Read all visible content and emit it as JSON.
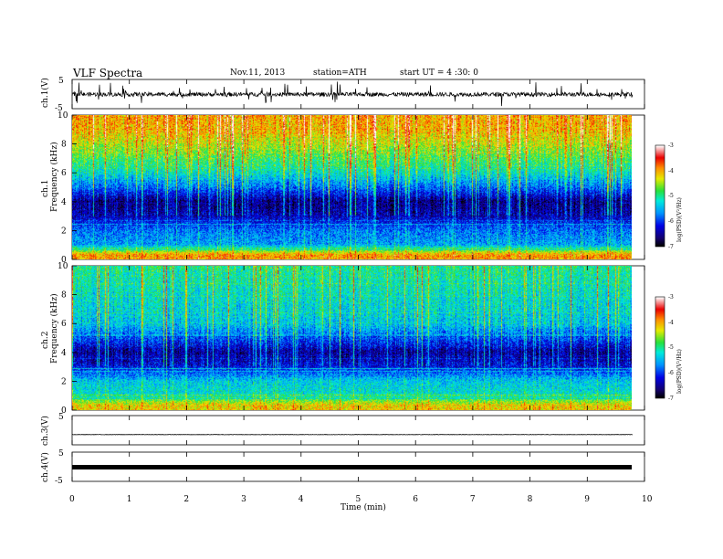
{
  "header": {
    "title": "VLF Spectra",
    "date": "Nov.11, 2013",
    "station": "station=ATH",
    "start_ut": "start UT =  4 :30: 0"
  },
  "chart_data": [
    {
      "type": "line",
      "panel": "ch1-waveform",
      "ylabel": "ch.1(V)",
      "ylim": [
        -5,
        5
      ],
      "yticks": [
        "5",
        "-5"
      ],
      "baseline_mean": -0.1,
      "spike_amplitude": 4,
      "color": "#000000"
    },
    {
      "type": "heatmap",
      "panel": "ch1-spectrogram",
      "ylabel_top": "ch.1",
      "ylabel": "Frequency  (kHz)",
      "ylim": [
        0,
        10
      ],
      "yticks": [
        "0",
        "2",
        "4",
        "6",
        "8",
        "10"
      ],
      "colorbar": {
        "label": "log(PSD)(V²/Hz)",
        "range": [
          -7,
          -3
        ],
        "ticks": [
          "-3",
          "-4",
          "-5",
          "-6",
          "-7"
        ]
      },
      "band_profile": [
        {
          "freq_khz": 0.3,
          "level": -4.0
        },
        {
          "freq_khz": 1.0,
          "level": -5.6
        },
        {
          "freq_khz": 2.0,
          "level": -5.8
        },
        {
          "freq_khz": 3.0,
          "level": -6.4
        },
        {
          "freq_khz": 4.0,
          "level": -6.6
        },
        {
          "freq_khz": 5.0,
          "level": -5.8
        },
        {
          "freq_khz": 6.0,
          "level": -5.2
        },
        {
          "freq_khz": 7.0,
          "level": -4.8
        },
        {
          "freq_khz": 8.0,
          "level": -4.4
        },
        {
          "freq_khz": 9.0,
          "level": -4.1
        },
        {
          "freq_khz": 10.0,
          "level": -4.0
        }
      ]
    },
    {
      "type": "heatmap",
      "panel": "ch2-spectrogram",
      "ylabel_top": "ch.2",
      "ylabel": "Frequency  (kHz)",
      "ylim": [
        0,
        10
      ],
      "yticks": [
        "0",
        "2",
        "4",
        "6",
        "8",
        "10"
      ],
      "colorbar": {
        "label": "log(PSD)(V²/Hz)",
        "range": [
          -7,
          -3
        ],
        "ticks": [
          "-3",
          "-4",
          "-5",
          "-6",
          "-7"
        ]
      },
      "band_profile": [
        {
          "freq_khz": 0.3,
          "level": -4.2
        },
        {
          "freq_khz": 1.0,
          "level": -5.2
        },
        {
          "freq_khz": 2.0,
          "level": -5.4
        },
        {
          "freq_khz": 3.0,
          "level": -6.2
        },
        {
          "freq_khz": 4.0,
          "level": -6.5
        },
        {
          "freq_khz": 5.0,
          "level": -5.9
        },
        {
          "freq_khz": 6.0,
          "level": -5.4
        },
        {
          "freq_khz": 7.0,
          "level": -5.3
        },
        {
          "freq_khz": 8.0,
          "level": -5.2
        },
        {
          "freq_khz": 9.0,
          "level": -5.1
        },
        {
          "freq_khz": 10.0,
          "level": -5.0
        }
      ]
    },
    {
      "type": "line",
      "panel": "ch3-waveform",
      "ylabel": "ch.3(V)",
      "ylim": [
        -5,
        5
      ],
      "yticks": [
        "5"
      ],
      "baseline_mean": -1.5,
      "color": "#000000"
    },
    {
      "type": "line",
      "panel": "ch4-waveform",
      "ylabel": "ch.4(V)",
      "ylim": [
        -5,
        5
      ],
      "yticks": [
        "5",
        "-5"
      ],
      "baseline_mean": -1.5,
      "color": "#000000"
    }
  ],
  "x_axis": {
    "label": "Time  (min)",
    "range": [
      0,
      10
    ],
    "data_end": 9.8,
    "ticks": [
      "0",
      "1",
      "2",
      "3",
      "4",
      "5",
      "6",
      "7",
      "8",
      "9",
      "10"
    ]
  }
}
